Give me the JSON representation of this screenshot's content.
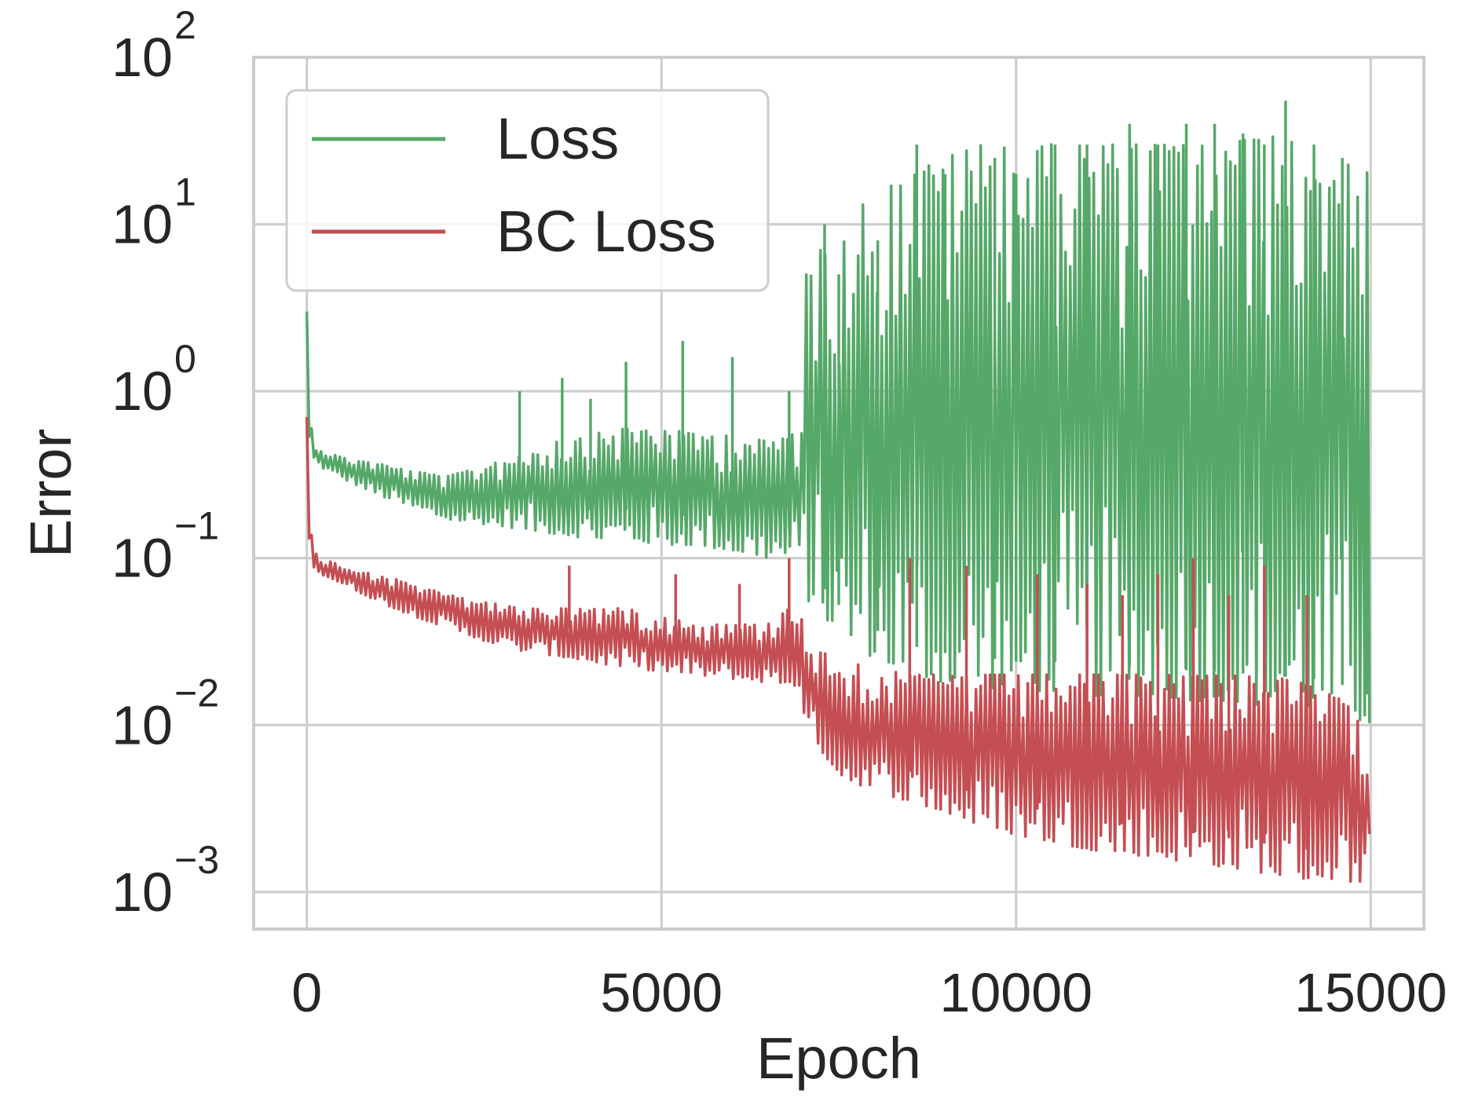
{
  "chart_data": {
    "type": "line",
    "xlabel": "Epoch",
    "ylabel": "Error",
    "xlim": [
      -750,
      15750
    ],
    "ylim": [
      0.0006,
      100
    ],
    "yscale": "log",
    "grid": true,
    "legend_position": "upper-left",
    "x_ticks": [
      0,
      5000,
      10000,
      15000
    ],
    "x_tick_labels": [
      "0",
      "5000",
      "10000",
      "15000"
    ],
    "y_ticks": [
      0.001,
      0.01,
      0.1,
      1,
      10,
      100
    ],
    "y_tick_labels": [
      {
        "base": "10",
        "exp": "−3"
      },
      {
        "base": "10",
        "exp": "−2"
      },
      {
        "base": "10",
        "exp": "−1"
      },
      {
        "base": "10",
        "exp": "0"
      },
      {
        "base": "10",
        "exp": "1"
      },
      {
        "base": "10",
        "exp": "2"
      }
    ],
    "series": [
      {
        "name": "Loss",
        "color": "#55a868",
        "x": [
          0,
          30,
          80,
          200,
          500,
          1000,
          1500,
          2000,
          2500,
          3000,
          3500,
          4000,
          4500,
          5000,
          5500,
          6000,
          6500,
          6990,
          7000,
          7500,
          8000,
          8500,
          9000,
          9500,
          10000,
          10500,
          11000,
          11500,
          12000,
          12500,
          13000,
          13500,
          14000,
          14500,
          15000
        ],
        "upper": [
          3.0,
          1.0,
          0.5,
          0.45,
          0.4,
          0.37,
          0.33,
          0.31,
          0.36,
          0.42,
          0.5,
          0.55,
          0.6,
          0.6,
          0.55,
          0.55,
          0.5,
          0.6,
          5.0,
          10.0,
          15.0,
          20.0,
          25.0,
          30.0,
          30.0,
          30.0,
          30.0,
          30.0,
          30.0,
          30.0,
          30.0,
          35.0,
          30.0,
          25.0,
          20.0
        ],
        "lower": [
          3.0,
          0.5,
          0.4,
          0.35,
          0.3,
          0.24,
          0.2,
          0.17,
          0.16,
          0.15,
          0.14,
          0.13,
          0.13,
          0.12,
          0.12,
          0.11,
          0.1,
          0.1,
          0.06,
          0.035,
          0.025,
          0.02,
          0.018,
          0.017,
          0.016,
          0.016,
          0.015,
          0.015,
          0.015,
          0.014,
          0.014,
          0.013,
          0.013,
          0.012,
          0.01
        ],
        "spikes": [
          {
            "x": 3000,
            "y": 1.0
          },
          {
            "x": 3600,
            "y": 1.2
          },
          {
            "x": 4000,
            "y": 0.9
          },
          {
            "x": 4500,
            "y": 1.5
          },
          {
            "x": 5300,
            "y": 2.0
          },
          {
            "x": 6000,
            "y": 1.6
          },
          {
            "x": 6800,
            "y": 1.0
          },
          {
            "x": 7300,
            "y": 10.0
          },
          {
            "x": 7500,
            "y": 5.0
          },
          {
            "x": 8050,
            "y": 8.0
          },
          {
            "x": 8600,
            "y": 30.0
          },
          {
            "x": 9000,
            "y": 20.0
          },
          {
            "x": 9700,
            "y": 25.0
          },
          {
            "x": 10000,
            "y": 20.0
          },
          {
            "x": 10550,
            "y": 30.0
          },
          {
            "x": 11000,
            "y": 30.0
          },
          {
            "x": 11600,
            "y": 40.0
          },
          {
            "x": 12000,
            "y": 30.0
          },
          {
            "x": 12400,
            "y": 40.0
          },
          {
            "x": 12800,
            "y": 40.0
          },
          {
            "x": 13200,
            "y": 35.0
          },
          {
            "x": 13500,
            "y": 30.0
          },
          {
            "x": 13800,
            "y": 55.0
          },
          {
            "x": 14200,
            "y": 30.0
          },
          {
            "x": 14600,
            "y": 25.0
          },
          {
            "x": 14950,
            "y": 15.0
          }
        ]
      },
      {
        "name": "BC Loss",
        "color": "#c44e52",
        "x": [
          0,
          30,
          80,
          200,
          500,
          1000,
          1500,
          2000,
          2500,
          3000,
          3500,
          4000,
          4500,
          5000,
          5500,
          6000,
          6500,
          6990,
          7000,
          7500,
          8000,
          8500,
          9000,
          9500,
          10000,
          10500,
          11000,
          11500,
          12000,
          12500,
          13000,
          13500,
          14000,
          14500,
          15000
        ],
        "upper": [
          0.7,
          0.2,
          0.12,
          0.1,
          0.09,
          0.08,
          0.07,
          0.06,
          0.055,
          0.05,
          0.05,
          0.05,
          0.05,
          0.045,
          0.04,
          0.04,
          0.04,
          0.06,
          0.03,
          0.025,
          0.022,
          0.02,
          0.02,
          0.02,
          0.02,
          0.02,
          0.02,
          0.02,
          0.02,
          0.02,
          0.02,
          0.02,
          0.018,
          0.015,
          0.01
        ],
        "lower": [
          0.7,
          0.12,
          0.09,
          0.08,
          0.07,
          0.055,
          0.045,
          0.038,
          0.032,
          0.028,
          0.026,
          0.024,
          0.022,
          0.021,
          0.02,
          0.019,
          0.018,
          0.017,
          0.01,
          0.005,
          0.004,
          0.0035,
          0.003,
          0.0025,
          0.0022,
          0.002,
          0.0018,
          0.0017,
          0.0016,
          0.0015,
          0.0014,
          0.0013,
          0.0012,
          0.0012,
          0.0011
        ],
        "spikes": [
          {
            "x": 3700,
            "y": 0.09
          },
          {
            "x": 5200,
            "y": 0.08
          },
          {
            "x": 6100,
            "y": 0.07
          },
          {
            "x": 6800,
            "y": 0.1
          },
          {
            "x": 8500,
            "y": 0.1
          },
          {
            "x": 9300,
            "y": 0.09
          },
          {
            "x": 10300,
            "y": 0.08
          },
          {
            "x": 11000,
            "y": 0.07
          },
          {
            "x": 11500,
            "y": 0.06
          },
          {
            "x": 12000,
            "y": 0.08
          },
          {
            "x": 12500,
            "y": 0.1
          },
          {
            "x": 13000,
            "y": 0.06
          },
          {
            "x": 13500,
            "y": 0.09
          },
          {
            "x": 14100,
            "y": 0.06
          }
        ]
      }
    ]
  }
}
